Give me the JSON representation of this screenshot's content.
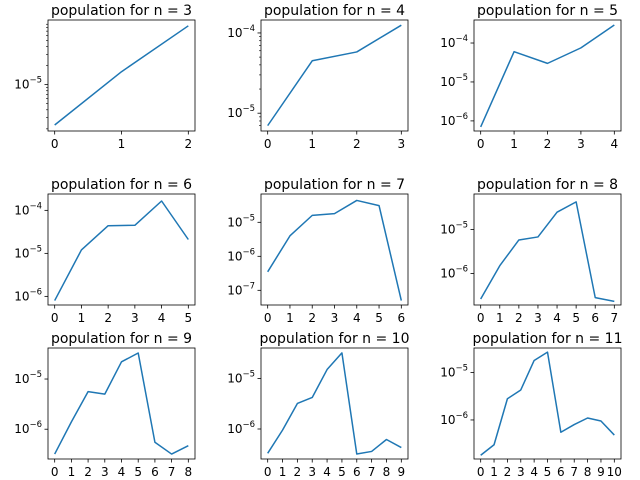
{
  "chart_data": [
    {
      "type": "line",
      "title": "population for n = 3",
      "x": [
        0,
        1,
        2
      ],
      "values": [
        2.3e-06,
        1.6e-05,
        8.5e-05
      ],
      "ylim": [
        1.85e-06,
        0.000105
      ],
      "log_y": true,
      "xticks": [
        "0",
        "1",
        "2"
      ],
      "yticks": [
        {
          "base": "10",
          "exp": "−5",
          "value": 1e-05
        }
      ],
      "minor_ticks": true
    },
    {
      "type": "line",
      "title": "population for n = 4",
      "x": [
        0,
        1,
        2,
        3
      ],
      "values": [
        7e-06,
        4.5e-05,
        5.8e-05,
        0.000125
      ],
      "ylim": [
        6e-06,
        0.000145
      ],
      "log_y": true,
      "xticks": [
        "0",
        "1",
        "2",
        "3"
      ],
      "yticks": [
        {
          "base": "10",
          "exp": "−5",
          "value": 1e-05
        },
        {
          "base": "10",
          "exp": "−4",
          "value": 0.0001
        }
      ],
      "minor_ticks": true
    },
    {
      "type": "line",
      "title": "population for n = 5",
      "x": [
        0,
        1,
        2,
        3,
        4
      ],
      "values": [
        7e-07,
        6e-05,
        3e-05,
        7.5e-05,
        0.00029
      ],
      "ylim": [
        5.5e-07,
        0.00039
      ],
      "log_y": true,
      "xticks": [
        "0",
        "1",
        "2",
        "3",
        "4"
      ],
      "yticks": [
        {
          "base": "10",
          "exp": "−6",
          "value": 1e-06
        },
        {
          "base": "10",
          "exp": "−5",
          "value": 1e-05
        },
        {
          "base": "10",
          "exp": "−4",
          "value": 0.0001
        }
      ],
      "minor_ticks": false
    },
    {
      "type": "line",
      "title": "population for n = 6",
      "x": [
        0,
        1,
        2,
        3,
        4,
        5
      ],
      "values": [
        8e-07,
        1.2e-05,
        4.4e-05,
        4.5e-05,
        0.000165,
        2.1e-05
      ],
      "ylim": [
        6.3e-07,
        0.00024
      ],
      "log_y": true,
      "xticks": [
        "0",
        "1",
        "2",
        "3",
        "4",
        "5"
      ],
      "yticks": [
        {
          "base": "10",
          "exp": "−6",
          "value": 1e-06
        },
        {
          "base": "10",
          "exp": "−5",
          "value": 1e-05
        },
        {
          "base": "10",
          "exp": "−4",
          "value": 0.0001
        }
      ],
      "minor_ticks": false
    },
    {
      "type": "line",
      "title": "population for n = 7",
      "x": [
        0,
        1,
        2,
        3,
        4,
        5,
        6
      ],
      "values": [
        3.5e-07,
        4e-06,
        1.6e-05,
        1.8e-05,
        4.4e-05,
        3.1e-05,
        5e-08
      ],
      "ylim": [
        3.7e-08,
        6.8e-05
      ],
      "log_y": true,
      "xticks": [
        "0",
        "1",
        "2",
        "3",
        "4",
        "5",
        "6"
      ],
      "yticks": [
        {
          "base": "10",
          "exp": "−7",
          "value": 1e-07
        },
        {
          "base": "10",
          "exp": "−6",
          "value": 1e-06
        },
        {
          "base": "10",
          "exp": "−5",
          "value": 1e-05
        }
      ],
      "minor_ticks": false
    },
    {
      "type": "line",
      "title": "population for n = 8",
      "x": [
        0,
        1,
        2,
        3,
        4,
        5,
        6,
        7
      ],
      "values": [
        2.6e-07,
        1.5e-06,
        5.8e-06,
        6.8e-06,
        2.5e-05,
        4.3e-05,
        2.8e-07,
        2.3e-07
      ],
      "ylim": [
        1.9e-07,
        6.5e-05
      ],
      "log_y": true,
      "xticks": [
        "0",
        "1",
        "2",
        "3",
        "4",
        "5",
        "6",
        "7"
      ],
      "yticks": [
        {
          "base": "10",
          "exp": "−6",
          "value": 1e-06
        },
        {
          "base": "10",
          "exp": "−5",
          "value": 1e-05
        }
      ],
      "minor_ticks": false
    },
    {
      "type": "line",
      "title": "population for n = 9",
      "x": [
        0,
        1,
        2,
        3,
        4,
        5,
        6,
        7,
        8
      ],
      "values": [
        3.2e-07,
        1.4e-06,
        5.6e-06,
        5e-06,
        2.2e-05,
        3.3e-05,
        5.5e-07,
        3.2e-07,
        4.7e-07
      ],
      "ylim": [
        2.55e-07,
        4.15e-05
      ],
      "log_y": true,
      "xticks": [
        "0",
        "1",
        "2",
        "3",
        "4",
        "5",
        "6",
        "7",
        "8"
      ],
      "yticks": [
        {
          "base": "10",
          "exp": "−6",
          "value": 1e-06
        },
        {
          "base": "10",
          "exp": "−5",
          "value": 1e-05
        }
      ],
      "minor_ticks": false
    },
    {
      "type": "line",
      "title": "population for n = 10",
      "x": [
        0,
        1,
        2,
        3,
        4,
        5,
        6,
        7,
        8,
        9
      ],
      "values": [
        3.3e-07,
        9.5e-07,
        3.2e-06,
        4.2e-06,
        1.5e-05,
        3.2e-05,
        3.2e-07,
        3.6e-07,
        6.2e-07,
        4.3e-07
      ],
      "ylim": [
        2.55e-07,
        4e-05
      ],
      "log_y": true,
      "xticks": [
        "0",
        "1",
        "2",
        "3",
        "4",
        "5",
        "6",
        "7",
        "8",
        "9"
      ],
      "yticks": [
        {
          "base": "10",
          "exp": "−6",
          "value": 1e-06
        },
        {
          "base": "10",
          "exp": "−5",
          "value": 1e-05
        }
      ],
      "minor_ticks": false
    },
    {
      "type": "line",
      "title": "population for n = 11",
      "x": [
        0,
        1,
        2,
        3,
        4,
        5,
        6,
        7,
        8,
        9,
        10
      ],
      "values": [
        1.8e-07,
        3e-07,
        2.8e-06,
        4.3e-06,
        1.8e-05,
        2.7e-05,
        5.5e-07,
        8e-07,
        1.1e-06,
        9.5e-07,
        4.8e-07
      ],
      "ylim": [
        1.5e-07,
        3.3e-05
      ],
      "log_y": true,
      "xticks": [
        "0",
        "1",
        "2",
        "3",
        "4",
        "5",
        "6",
        "7",
        "8",
        "9",
        "10"
      ],
      "yticks": [
        {
          "base": "10",
          "exp": "−6",
          "value": 1e-06
        },
        {
          "base": "10",
          "exp": "−5",
          "value": 1e-05
        }
      ],
      "minor_ticks": false
    }
  ],
  "colors": {
    "line": "#1f77b4",
    "axes": "#000000",
    "background": "#ffffff"
  }
}
